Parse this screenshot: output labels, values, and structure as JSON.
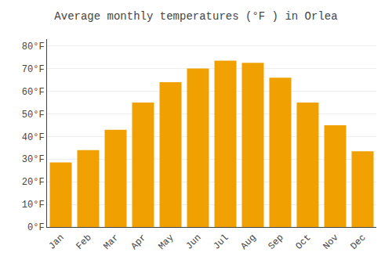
{
  "chart_data": {
    "type": "bar",
    "title": "Average monthly temperatures (°F ) in Orlea",
    "categories": [
      "Jan",
      "Feb",
      "Mar",
      "Apr",
      "May",
      "Jun",
      "Jul",
      "Aug",
      "Sep",
      "Oct",
      "Nov",
      "Dec"
    ],
    "values": [
      28.5,
      34,
      43,
      55,
      64,
      70,
      73.5,
      72.5,
      66,
      55,
      45,
      33.5
    ],
    "color": "#F0A000",
    "ylim": [
      0,
      83
    ],
    "yticks": [
      {
        "value": 0,
        "label": "0°F"
      },
      {
        "value": 10,
        "label": "10°F"
      },
      {
        "value": 20,
        "label": "20°F"
      },
      {
        "value": 30,
        "label": "30°F"
      },
      {
        "value": 40,
        "label": "40°F"
      },
      {
        "value": 50,
        "label": "50°F"
      },
      {
        "value": 60,
        "label": "60°F"
      },
      {
        "value": 70,
        "label": "70°F"
      },
      {
        "value": 80,
        "label": "80°F"
      }
    ],
    "grid": true
  }
}
